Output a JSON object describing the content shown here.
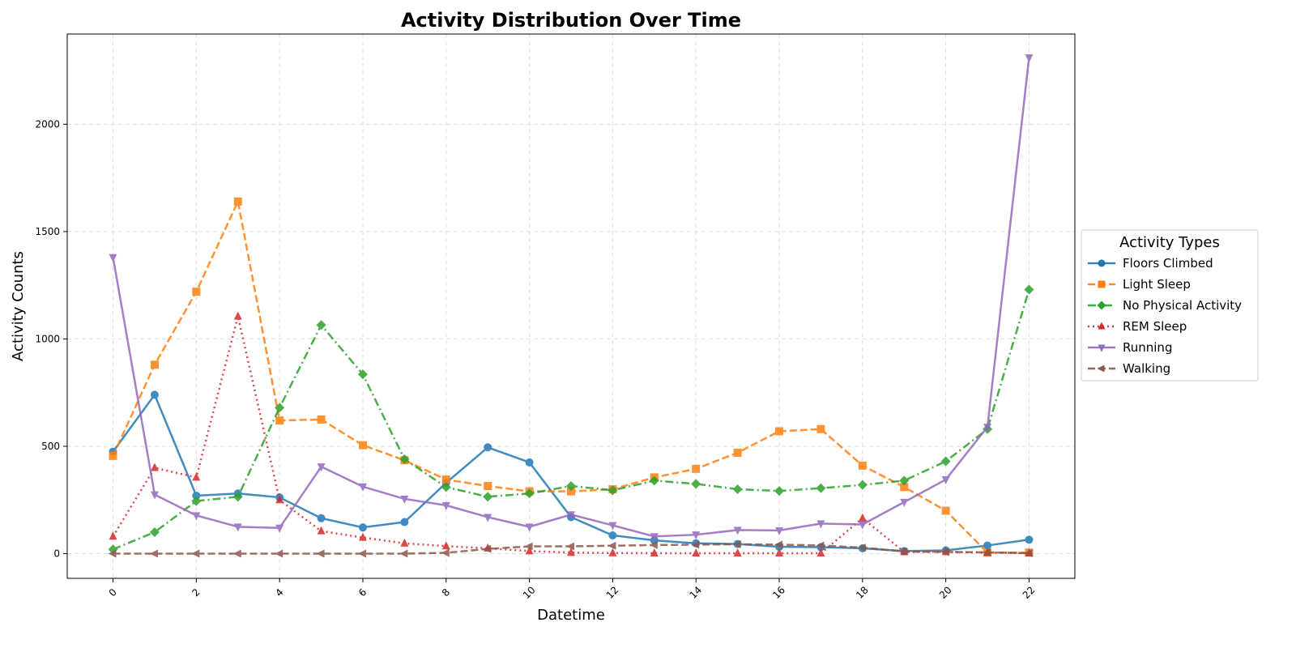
{
  "chart_data": {
    "type": "line",
    "title": "Activity Distribution Over Time",
    "xlabel": "Datetime",
    "ylabel": "Activity Counts",
    "x": [
      0,
      1,
      2,
      3,
      4,
      5,
      6,
      7,
      8,
      9,
      10,
      11,
      12,
      13,
      14,
      15,
      16,
      17,
      18,
      19,
      20,
      21,
      22
    ],
    "xticks": [
      0,
      2,
      4,
      6,
      8,
      10,
      12,
      14,
      16,
      18,
      20,
      22
    ],
    "yticks": [
      0,
      500,
      1000,
      1500,
      2000
    ],
    "xlim": [
      -1.1,
      23.1
    ],
    "ylim": [
      -115,
      2420
    ],
    "grid": true,
    "legend": {
      "title": "Activity Types",
      "placement": "center-right outside"
    },
    "series": [
      {
        "name": "Floors Climbed",
        "color": "#1f77b4",
        "marker": "circle",
        "linestyle": "solid",
        "values": [
          475,
          740,
          270,
          280,
          262,
          165,
          122,
          147,
          330,
          495,
          425,
          170,
          85,
          62,
          48,
          45,
          32,
          30,
          25,
          12,
          15,
          38,
          65
        ]
      },
      {
        "name": "Light Sleep",
        "color": "#ff7f0e",
        "marker": "square",
        "linestyle": "dashed",
        "values": [
          455,
          880,
          1220,
          1640,
          620,
          625,
          505,
          435,
          345,
          315,
          290,
          290,
          300,
          355,
          395,
          470,
          570,
          580,
          410,
          310,
          200,
          5,
          5
        ]
      },
      {
        "name": "No Physical Activity",
        "color": "#2ca02c",
        "marker": "diamond",
        "linestyle": "dashdot",
        "values": [
          20,
          100,
          245,
          265,
          680,
          1065,
          835,
          440,
          310,
          265,
          280,
          315,
          295,
          340,
          325,
          300,
          292,
          305,
          320,
          340,
          430,
          580,
          1230
        ]
      },
      {
        "name": "REM Sleep",
        "color": "#d62728",
        "marker": "triangle-up",
        "linestyle": "dotted",
        "values": [
          80,
          400,
          355,
          1105,
          250,
          105,
          75,
          48,
          35,
          25,
          12,
          5,
          3,
          2,
          2,
          2,
          2,
          2,
          165,
          8,
          8,
          5,
          2
        ]
      },
      {
        "name": "Running",
        "color": "#9467bd",
        "marker": "triangle-down",
        "linestyle": "solid",
        "values": [
          1380,
          275,
          178,
          125,
          120,
          405,
          312,
          255,
          225,
          170,
          125,
          182,
          132,
          80,
          88,
          110,
          108,
          140,
          136,
          240,
          345,
          590,
          2310
        ]
      },
      {
        "name": "Walking",
        "color": "#8c564b",
        "marker": "triangle-left",
        "linestyle": "dashed",
        "values": [
          0,
          0,
          0,
          0,
          0,
          0,
          0,
          0,
          4,
          22,
          34,
          34,
          37,
          40,
          42,
          44,
          42,
          38,
          28,
          10,
          8,
          6,
          2
        ]
      }
    ]
  }
}
